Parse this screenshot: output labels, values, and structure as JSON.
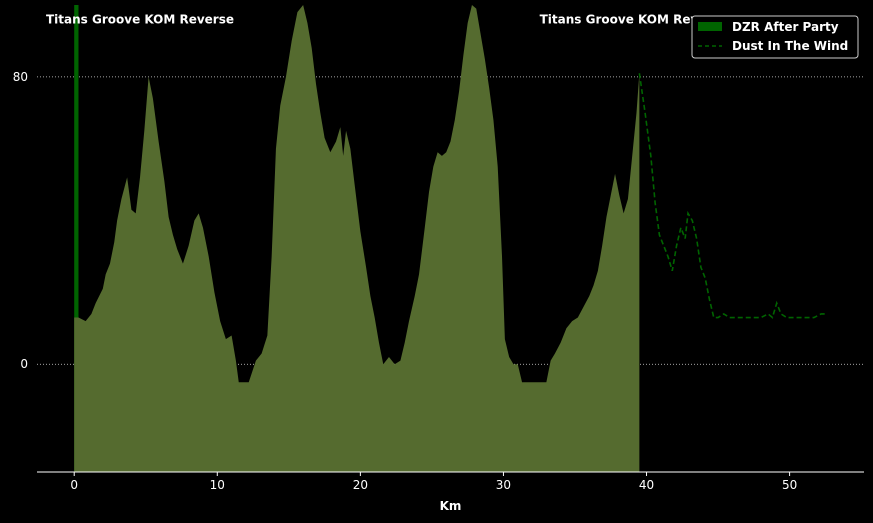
{
  "chart_data": {
    "type": "area",
    "xlabel": "Km",
    "xlim": [
      -2.6,
      55.2
    ],
    "ylim": [
      -30,
      100
    ],
    "xticks": [
      0,
      10,
      20,
      30,
      40,
      50
    ],
    "yticks": [
      0,
      80
    ],
    "xtick_labels": [
      "0",
      "10",
      "20",
      "30",
      "40",
      "50"
    ],
    "ytick_labels": [
      "0",
      "80"
    ],
    "grid": "horizontal dotted at y ticks",
    "legend": {
      "placement": "top-right",
      "entries": [
        "DZR After Party",
        "Dust In The Wind"
      ]
    },
    "annotations": [
      {
        "text": "Titans Groove KOM Reverse",
        "x": 4.6,
        "y": 96
      },
      {
        "text": "Titans Groove KOM Reverse",
        "x": 39.1,
        "y": 96
      }
    ],
    "series": [
      {
        "name": "DZR After Party",
        "kind": "bar",
        "color": "#006400",
        "x_start": 0,
        "x_end": 0.3,
        "value": 100
      },
      {
        "name": "",
        "kind": "area",
        "color": "#556b2f",
        "x": [
          0,
          0.3,
          0.8,
          1.2,
          1.5,
          2.0,
          2.2,
          2.5,
          2.8,
          3.0,
          3.3,
          3.7,
          4.0,
          4.3,
          4.6,
          4.9,
          5.2,
          5.5,
          5.9,
          6.3,
          6.6,
          6.9,
          7.2,
          7.6,
          8.0,
          8.4,
          8.7,
          9.0,
          9.4,
          9.8,
          10.2,
          10.6,
          11.0,
          11.3,
          11.5,
          11.7,
          12.2,
          12.7,
          13.1,
          13.5,
          13.8,
          14.1,
          14.4,
          14.8,
          15.2,
          15.6,
          16.0,
          16.3,
          16.6,
          16.9,
          17.2,
          17.5,
          17.9,
          18.3,
          18.6,
          18.8,
          19.0,
          19.3,
          19.6,
          20.0,
          20.4,
          20.7,
          21.0,
          21.3,
          21.6,
          22.0,
          22.4,
          22.8,
          23.1,
          23.4,
          23.8,
          24.1,
          24.5,
          24.8,
          25.1,
          25.4,
          25.7,
          26.0,
          26.3,
          26.6,
          26.9,
          27.2,
          27.5,
          27.8,
          28.1,
          28.4,
          28.7,
          29.0,
          29.3,
          29.6,
          29.9,
          30.1,
          30.4,
          30.7,
          31.0,
          31.3,
          31.6,
          32.0,
          32.5,
          33.0,
          33.3,
          33.6,
          34.0,
          34.4,
          34.8,
          35.2,
          35.6,
          36.0,
          36.3,
          36.6,
          36.9,
          37.2,
          37.5,
          37.8,
          38.1,
          38.4,
          38.7,
          39.0,
          39.3,
          39.5
        ],
        "y": [
          13,
          13,
          12,
          14,
          17,
          21,
          25,
          28,
          34,
          40,
          46,
          52,
          43,
          42,
          52,
          65,
          80,
          74,
          62,
          51,
          41,
          36,
          32,
          28,
          33,
          40,
          42,
          38,
          30,
          20,
          12,
          7,
          8,
          1,
          -5,
          -5,
          -5,
          1,
          3,
          8,
          30,
          60,
          72,
          80,
          90,
          98,
          100,
          95,
          88,
          78,
          70,
          63,
          59,
          62,
          66,
          58,
          65,
          60,
          50,
          37,
          27,
          19,
          13,
          6,
          0,
          2,
          0,
          1,
          6,
          12,
          19,
          25,
          38,
          48,
          55,
          59,
          58,
          59,
          62,
          68,
          76,
          86,
          95,
          100,
          99,
          92,
          85,
          77,
          68,
          55,
          30,
          7,
          2,
          0,
          0,
          -5,
          -5,
          -5,
          -5,
          -5,
          1,
          3,
          6,
          10,
          12,
          13,
          16,
          19,
          22,
          26,
          33,
          41,
          47,
          53,
          47,
          42,
          46,
          58,
          70,
          81
        ]
      },
      {
        "name": "Dust In The Wind",
        "kind": "line",
        "style": "dashed",
        "color": "#006400",
        "x": [
          39.5,
          39.9,
          40.3,
          40.6,
          40.9,
          41.2,
          41.5,
          41.8,
          42.1,
          42.4,
          42.7,
          42.9,
          43.2,
          43.5,
          43.8,
          44.1,
          44.4,
          44.7,
          45.0,
          45.4,
          45.8,
          46.2,
          46.8,
          47.4,
          48.0,
          48.5,
          48.8,
          49.1,
          49.4,
          49.8,
          50.3,
          51.0,
          51.7,
          52.2,
          52.5
        ],
        "y": [
          81,
          70,
          58,
          45,
          36,
          33,
          30,
          26,
          33,
          38,
          35,
          42,
          40,
          35,
          27,
          24,
          18,
          13,
          13,
          14,
          13,
          13,
          13,
          13,
          13,
          14,
          13,
          17,
          14,
          13,
          13,
          13,
          13,
          14,
          14
        ]
      }
    ]
  }
}
